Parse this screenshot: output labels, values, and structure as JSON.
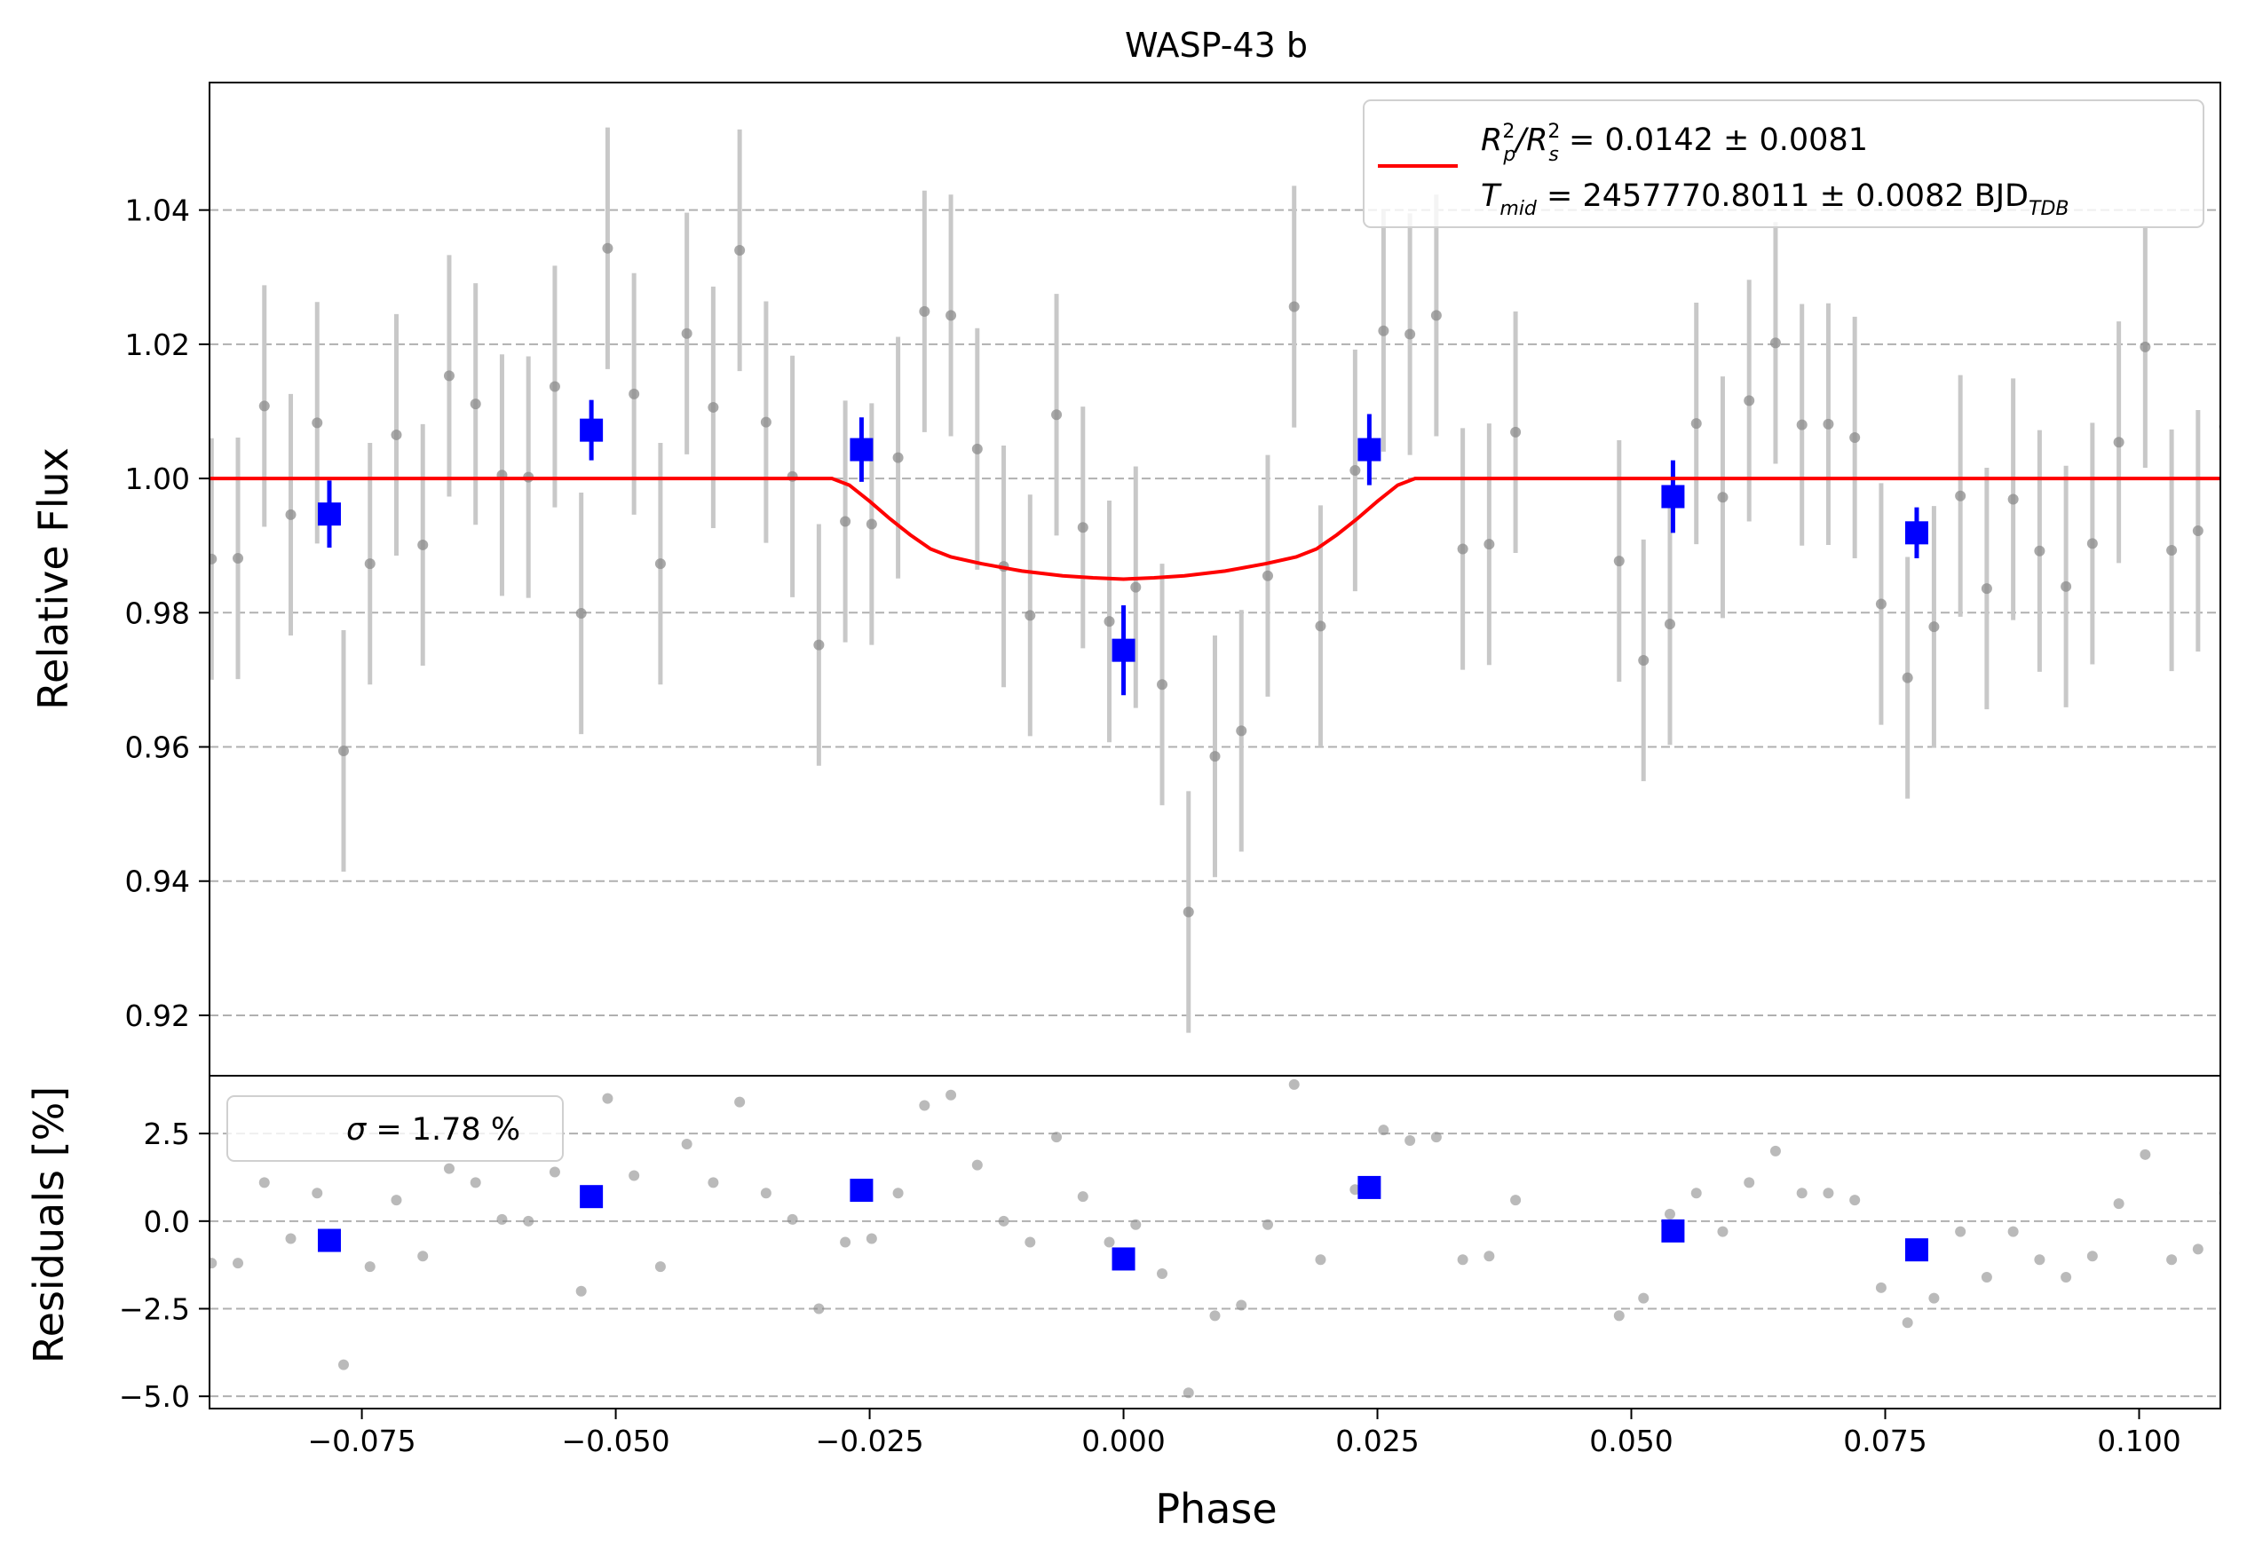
{
  "chart_data": [
    {
      "type": "scatter",
      "title": "WASP-43 b",
      "xlabel": "",
      "ylabel": "Relative Flux",
      "xlim": [
        -0.09,
        0.108
      ],
      "ylim": [
        0.911,
        1.059
      ],
      "xscale": "linear",
      "yscale": "linear",
      "grid": "horizontal dashed",
      "legend_position": "upper right",
      "y_ticks": [
        0.92,
        0.94,
        0.96,
        0.98,
        1.0,
        1.02,
        1.04
      ],
      "y_tick_labels": [
        "0.92",
        "0.94",
        "0.96",
        "0.98",
        "1.00",
        "1.02",
        "1.04"
      ],
      "legend": {
        "line1_a": "R",
        "line1_a_sup": "2",
        "line1_a_sub": "p",
        "line1_b": "/R",
        "line1_b_sup": "2",
        "line1_b_sub": "s",
        "line1_c": " = 0.0142 ± 0.0081",
        "line2_a": "T",
        "line2_a_sub": "mid",
        "line2_b": " = 2457770.8011 ± 0.0082 BJD",
        "line2_b_sub": "TDB"
      },
      "colors": {
        "raw": "#8c8c8c",
        "raw_err": "#c8c8c8",
        "binned": "#0000ff",
        "model": "#ff0000"
      },
      "raw": {
        "x": [
          -0.0898,
          -0.0872,
          -0.0846,
          -0.082,
          -0.0794,
          -0.0768,
          -0.0742,
          -0.0716,
          -0.069,
          -0.0664,
          -0.0638,
          -0.0612,
          -0.0586,
          -0.056,
          -0.0534,
          -0.0508,
          -0.0482,
          -0.0456,
          -0.043,
          -0.0404,
          -0.0378,
          -0.0352,
          -0.0326,
          -0.03,
          -0.0274,
          -0.0248,
          -0.0222,
          -0.0196,
          -0.017,
          -0.0144,
          -0.0118,
          -0.0092,
          -0.0066,
          -0.004,
          -0.0014,
          0.0012,
          0.0038,
          0.0064,
          0.009,
          0.0116,
          0.0142,
          0.0168,
          0.0194,
          0.0228,
          0.0256,
          0.0282,
          0.0308,
          0.0334,
          0.036,
          0.0386,
          0.0488,
          0.0512,
          0.0538,
          0.0564,
          0.059,
          0.0616,
          0.0642,
          0.0668,
          0.0694,
          0.072,
          0.0746,
          0.0772,
          0.0798,
          0.0824,
          0.085,
          0.0876,
          0.0902,
          0.0928,
          0.0954,
          0.098,
          0.1006,
          0.1032,
          0.1058,
          0.1084
        ],
        "y": [
          0.988,
          0.9881,
          1.0108,
          0.9946,
          1.0083,
          0.9594,
          0.9873,
          1.0065,
          0.9901,
          1.0153,
          1.0111,
          1.0005,
          1.0002,
          1.0137,
          0.9799,
          1.0343,
          1.0126,
          0.9873,
          1.0216,
          1.0106,
          1.034,
          1.0084,
          1.0003,
          0.9752,
          0.9936,
          0.9932,
          1.0031,
          1.0249,
          1.0243,
          1.0044,
          0.9869,
          0.9796,
          1.0095,
          0.9927,
          0.9787,
          0.9838,
          0.9693,
          0.9354,
          0.9586,
          0.9624,
          0.9855,
          1.0256,
          0.978,
          1.0012,
          1.022,
          1.0215,
          1.0243,
          0.9895,
          0.9902,
          1.0069,
          0.9877,
          0.9729,
          0.9783,
          1.0082,
          0.9972,
          1.0116,
          1.0202,
          1.008,
          1.0081,
          1.0061,
          0.9813,
          0.9703,
          0.9779,
          0.9974,
          0.9836,
          0.9969,
          0.9892,
          0.9839,
          0.9903,
          1.0054,
          1.0196,
          0.9893,
          0.9922,
          1.0077
        ],
        "yerr": 0.018
      },
      "binned": {
        "x": [
          -0.0782,
          -0.0524,
          -0.0258,
          0.0,
          0.0242,
          0.0541,
          0.0781
        ],
        "y": [
          0.9947,
          1.0072,
          1.0043,
          0.9744,
          1.0043,
          0.9973,
          0.9919
        ],
        "yerr": [
          0.005,
          0.0045,
          0.0048,
          0.0067,
          0.0053,
          0.0054,
          0.0038
        ]
      },
      "model": {
        "x": [
          -0.09,
          -0.0287,
          -0.027,
          -0.025,
          -0.023,
          -0.021,
          -0.019,
          -0.017,
          -0.014,
          -0.01,
          -0.006,
          -0.003,
          0.0,
          0.003,
          0.006,
          0.01,
          0.014,
          0.017,
          0.019,
          0.021,
          0.023,
          0.025,
          0.027,
          0.0287,
          0.108
        ],
        "y": [
          1.0,
          1.0,
          0.999,
          0.9966,
          0.994,
          0.9916,
          0.9895,
          0.9883,
          0.9873,
          0.9862,
          0.9855,
          0.9852,
          0.985,
          0.9852,
          0.9855,
          0.9862,
          0.9873,
          0.9883,
          0.9895,
          0.9916,
          0.994,
          0.9966,
          0.999,
          1.0,
          1.0
        ]
      }
    },
    {
      "type": "scatter",
      "title": "",
      "xlabel": "Phase",
      "ylabel": "Residuals [%]",
      "xlim": [
        -0.09,
        0.108
      ],
      "ylim": [
        -5.35,
        4.15
      ],
      "grid": "horizontal dashed",
      "legend_position": "upper left",
      "legend": {
        "sigma_symbol": "σ",
        "sigma_text": " = 1.78 %"
      },
      "x_ticks": [
        -0.075,
        -0.05,
        -0.025,
        0.0,
        0.025,
        0.05,
        0.075,
        0.1
      ],
      "x_tick_labels": [
        "−0.075",
        "−0.050",
        "−0.025",
        "0.000",
        "0.025",
        "0.050",
        "0.075",
        "0.100"
      ],
      "y_ticks": [
        -5.0,
        -2.5,
        0.0,
        2.5
      ],
      "y_tick_labels": [
        "−5.0",
        "−2.5",
        "0.0",
        "2.5"
      ],
      "raw": {
        "x": [
          -0.0898,
          -0.0872,
          -0.0846,
          -0.082,
          -0.0794,
          -0.0768,
          -0.0742,
          -0.0716,
          -0.069,
          -0.0664,
          -0.0638,
          -0.0612,
          -0.0586,
          -0.056,
          -0.0534,
          -0.0508,
          -0.0482,
          -0.0456,
          -0.043,
          -0.0404,
          -0.0378,
          -0.0352,
          -0.0326,
          -0.03,
          -0.0274,
          -0.0248,
          -0.0222,
          -0.0196,
          -0.017,
          -0.0144,
          -0.0118,
          -0.0092,
          -0.0066,
          -0.004,
          -0.0014,
          0.0012,
          0.0038,
          0.0064,
          0.009,
          0.0116,
          0.0142,
          0.0168,
          0.0194,
          0.0228,
          0.0256,
          0.0282,
          0.0308,
          0.0334,
          0.036,
          0.0386,
          0.0488,
          0.0512,
          0.0538,
          0.0564,
          0.059,
          0.0616,
          0.0642,
          0.0668,
          0.0694,
          0.072,
          0.0746,
          0.0772,
          0.0798,
          0.0824,
          0.085,
          0.0876,
          0.0902,
          0.0928,
          0.0954,
          0.098,
          0.1006,
          0.1032,
          0.1058,
          0.1084
        ],
        "y": [
          -1.2,
          -1.2,
          1.1,
          -0.5,
          0.8,
          -4.1,
          -1.3,
          0.6,
          -1.0,
          1.5,
          1.1,
          0.05,
          0.0,
          1.4,
          -2.0,
          3.5,
          1.3,
          -1.3,
          2.2,
          1.1,
          3.4,
          0.8,
          0.05,
          -2.5,
          -0.6,
          -0.5,
          0.8,
          3.3,
          3.6,
          1.6,
          0.0,
          -0.6,
          2.4,
          0.7,
          -0.6,
          -0.1,
          -1.5,
          -4.9,
          -2.7,
          -2.4,
          -0.1,
          3.9,
          -1.1,
          0.9,
          2.6,
          2.3,
          2.4,
          -1.1,
          -1.0,
          0.6,
          -2.7,
          -2.2,
          0.2,
          0.8,
          -0.3,
          1.1,
          2.0,
          0.8,
          0.8,
          0.6,
          -1.9,
          -2.9,
          -2.2,
          -0.3,
          -1.6,
          -0.3,
          -1.1,
          -1.6,
          -1.0,
          0.5,
          1.9,
          -1.1,
          -0.8,
          0.8
        ]
      },
      "binned": {
        "x": [
          -0.0782,
          -0.0524,
          -0.0258,
          0.0,
          0.0242,
          0.0541,
          0.0781
        ],
        "y": [
          -0.55,
          0.7,
          0.88,
          -1.08,
          0.96,
          -0.28,
          -0.82
        ]
      }
    }
  ]
}
